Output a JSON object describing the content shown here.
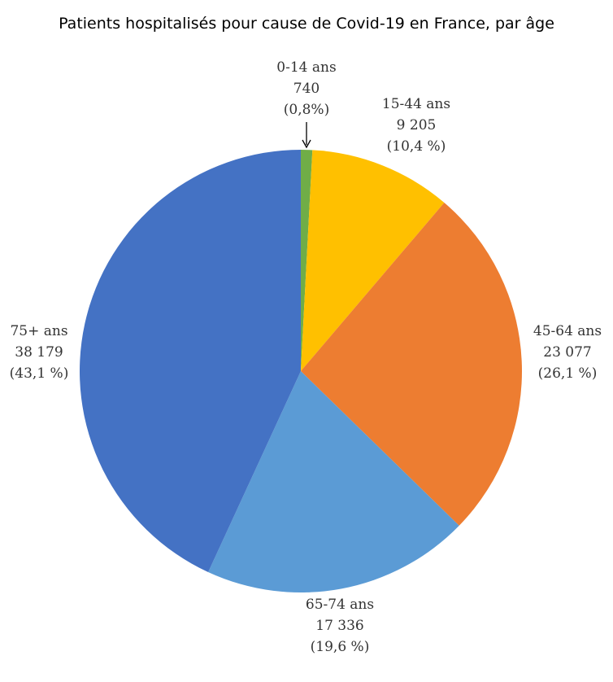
{
  "chart_data": {
    "type": "pie",
    "title": "Patients hospitalisés pour cause de Covid-19 en France, par âge",
    "categories": [
      "0-14 ans",
      "15-44 ans",
      "45-64 ans",
      "65-74 ans",
      "75+ ans"
    ],
    "values": [
      740,
      9205,
      23077,
      17336,
      38179
    ],
    "value_labels": [
      "740",
      "9 205",
      "23 077",
      "17 336",
      "38 179"
    ],
    "percent_labels": [
      "(0,8%)",
      "(10,4 %)",
      "(26,1 %)",
      "(19,6 %)",
      "(43,1 %)"
    ],
    "colors": [
      "#70ad47",
      "#ffc000",
      "#ed7d31",
      "#5b9bd5",
      "#4472c4"
    ]
  }
}
